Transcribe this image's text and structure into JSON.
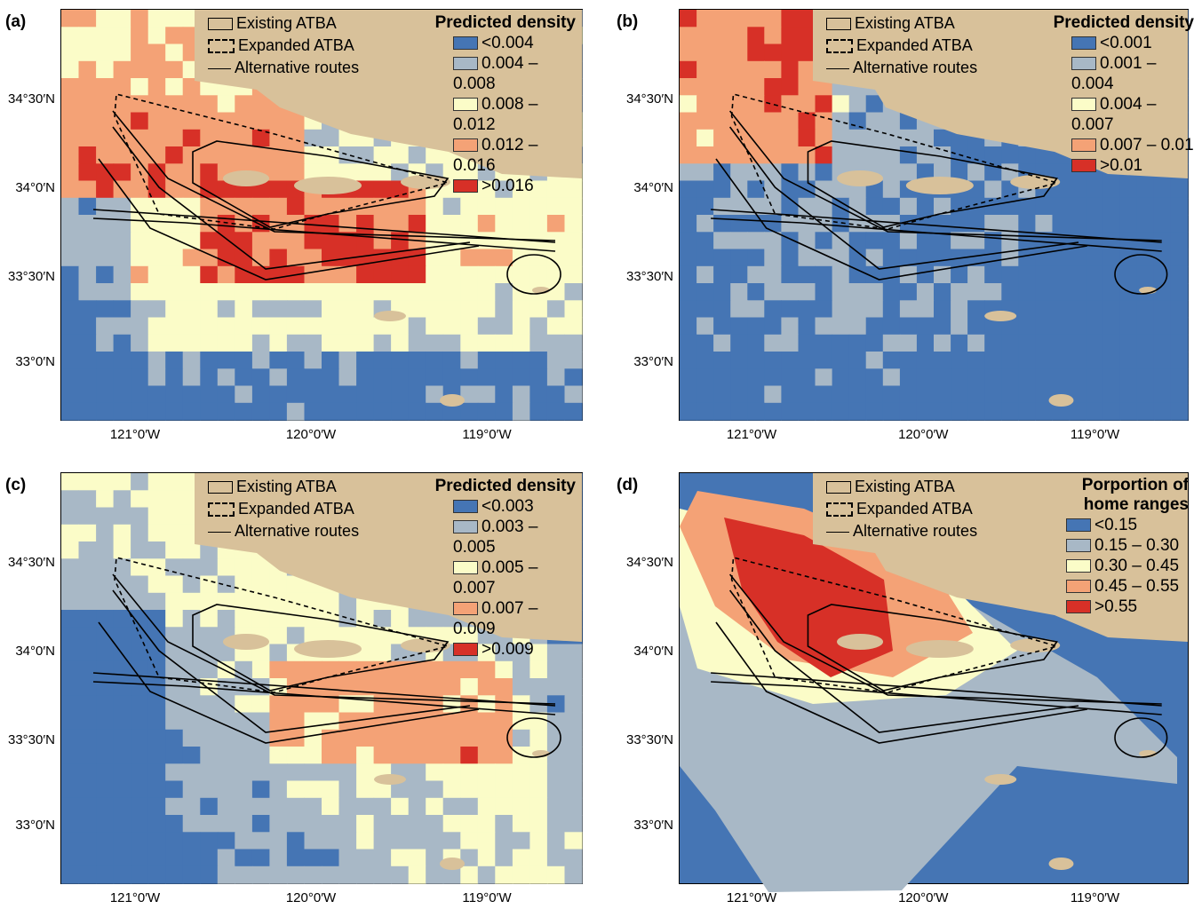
{
  "panels": [
    {
      "tag": "(a)",
      "legend_title": "Predicted density",
      "classes": [
        {
          "label": "<0.004",
          "color": "#4575b4"
        },
        {
          "label": "0.004 – 0.008",
          "color": "#a8b8c6"
        },
        {
          "label": "0.008 – 0.012",
          "color": "#fbfcc8"
        },
        {
          "label": "0.012 – 0.016",
          "color": "#f4a276"
        },
        {
          "label": ">0.016",
          "color": "#d73027"
        }
      ]
    },
    {
      "tag": "(b)",
      "legend_title": "Predicted density",
      "classes": [
        {
          "label": "<0.001",
          "color": "#4575b4"
        },
        {
          "label": "0.001 – 0.004",
          "color": "#a8b8c6"
        },
        {
          "label": "0.004 – 0.007",
          "color": "#fbfcc8"
        },
        {
          "label": "0.007 – 0.01",
          "color": "#f4a276"
        },
        {
          "label": ">0.01",
          "color": "#d73027"
        }
      ]
    },
    {
      "tag": "(c)",
      "legend_title": "Predicted density",
      "classes": [
        {
          "label": "<0.003",
          "color": "#4575b4"
        },
        {
          "label": "0.003 – 0.005",
          "color": "#a8b8c6"
        },
        {
          "label": "0.005 – 0.007",
          "color": "#fbfcc8"
        },
        {
          "label": "0.007 – 0.009",
          "color": "#f4a276"
        },
        {
          "label": ">0.009",
          "color": "#d73027"
        }
      ]
    },
    {
      "tag": "(d)",
      "legend_title": "Porportion of home ranges",
      "classes": [
        {
          "label": "<0.15",
          "color": "#4575b4"
        },
        {
          "label": "0.15 – 0.30",
          "color": "#a8b8c6"
        },
        {
          "label": "0.30 – 0.45",
          "color": "#fbfcc8"
        },
        {
          "label": "0.45 – 0.55",
          "color": "#f4a276"
        },
        {
          "label": ">0.55",
          "color": "#d73027"
        }
      ]
    }
  ],
  "key": {
    "existing": "Existing ATBA",
    "expanded": "Expanded ATBA",
    "routes": "Alternative routes"
  },
  "axes": {
    "y_ticks": [
      "34°30′N",
      "34°0′N",
      "33°30′N",
      "33°0′N"
    ],
    "x_ticks": [
      "121°0′W",
      "120°0′W",
      "119°0′W"
    ]
  },
  "colors": {
    "land": "#d8c19a",
    "line": "#000000"
  }
}
